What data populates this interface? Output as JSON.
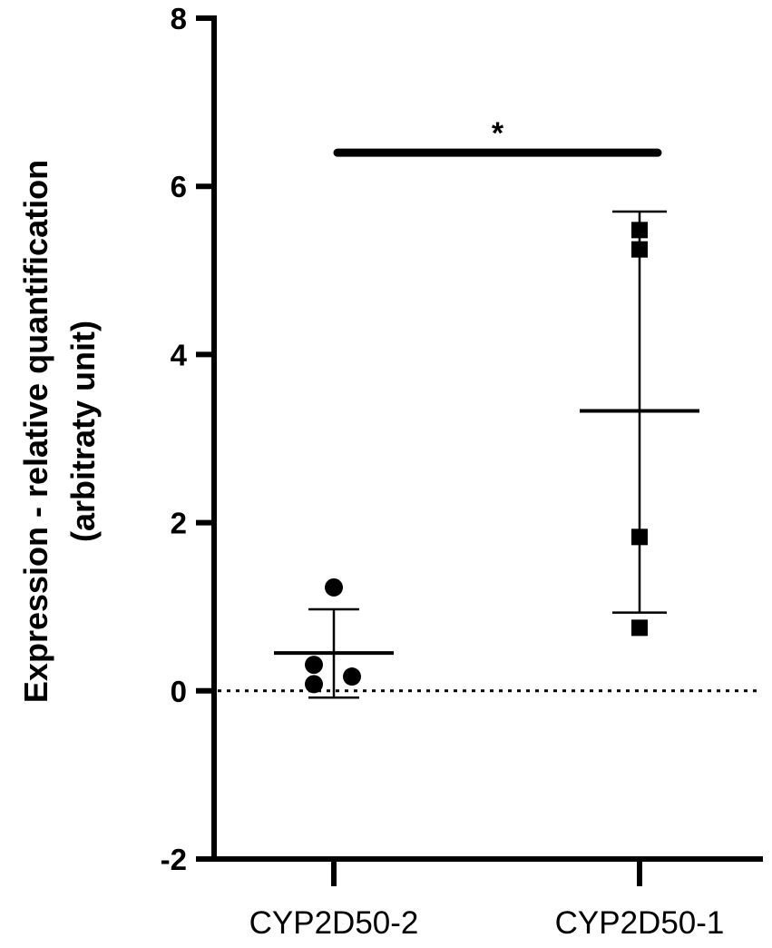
{
  "chart_data": {
    "type": "scatter",
    "title": "",
    "xlabel": "",
    "ylabel_lines": [
      "Expression - relative quantification",
      "(arbitraty unit)"
    ],
    "ylim": [
      -2,
      8
    ],
    "yticks": [
      -2,
      0,
      2,
      4,
      6,
      8
    ],
    "ytick_labels": [
      "-2",
      "0",
      "2",
      "4",
      "6",
      "8"
    ],
    "grid": false,
    "legend": "none",
    "reference_line": {
      "y": 0,
      "style": "dotted"
    },
    "categories": [
      "CYP2D50-2",
      "CYP2D50-1"
    ],
    "series": [
      {
        "category": "CYP2D50-2",
        "marker": "circle",
        "values": [
          1.23,
          0.31,
          0.17,
          0.08
        ],
        "mean": 0.45,
        "error_upper": 0.97,
        "error_lower": -0.08
      },
      {
        "category": "CYP2D50-1",
        "marker": "square",
        "values": [
          5.48,
          5.25,
          1.83,
          0.75
        ],
        "mean": 3.33,
        "error_upper": 5.7,
        "error_lower": 0.93
      }
    ],
    "significance": {
      "between": [
        "CYP2D50-2",
        "CYP2D50-1"
      ],
      "y": 6.4,
      "label": "*"
    },
    "colors": {
      "marks": "#000000",
      "background": "#ffffff"
    }
  }
}
